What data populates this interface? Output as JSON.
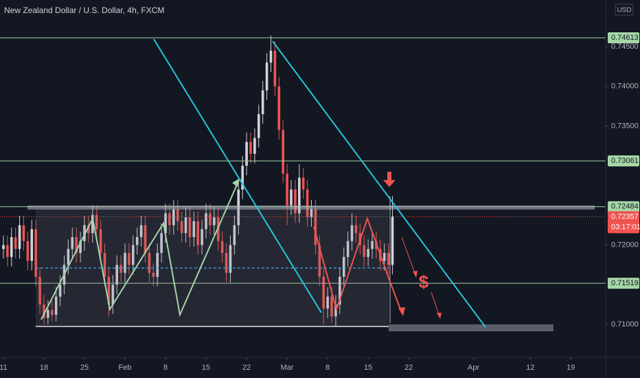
{
  "chart_data": {
    "type": "candlestick",
    "title": "New Zealand Dollar / U.S. Dollar, 4h, FXCM",
    "currency": "USD",
    "annotation": "$",
    "x": [
      0,
      0.5,
      1,
      1.5,
      2,
      2.5,
      3,
      3.5,
      4,
      4.5,
      5,
      5.5,
      6,
      6.5,
      7,
      7.5,
      8,
      8.5,
      9,
      9.5,
      10,
      10.5,
      11,
      11.5,
      12,
      12.5,
      13,
      13.5,
      14,
      14.5,
      15,
      15.5,
      16,
      16.5,
      17,
      17.5,
      18,
      18.5,
      19,
      19.5,
      20,
      20.5,
      21,
      21.5,
      22,
      22.5,
      23,
      23.5,
      24,
      24.5,
      25,
      25.5,
      26,
      26.5,
      27,
      27.5,
      28,
      28.5,
      29,
      29.5,
      30,
      30.5,
      31,
      31.5,
      32,
      32.5,
      33,
      33.5,
      34,
      34.5,
      35,
      35.5,
      36,
      36.5,
      37,
      37.5,
      38,
      38.5,
      39,
      39.5,
      40,
      40.5,
      41,
      41.5,
      42,
      42.5,
      43,
      43.5,
      44,
      44.5,
      45,
      45.5,
      46,
      46.5,
      47,
      47.5,
      48
    ],
    "open": [
      0.7195,
      0.72,
      0.7185,
      0.721,
      0.7195,
      0.7225,
      0.7205,
      0.718,
      0.722,
      0.716,
      0.7125,
      0.7108,
      0.7118,
      0.7112,
      0.7135,
      0.715,
      0.7175,
      0.7195,
      0.721,
      0.719,
      0.7205,
      0.7225,
      0.7215,
      0.7238,
      0.722,
      0.719,
      0.716,
      0.7125,
      0.715,
      0.7175,
      0.7165,
      0.719,
      0.7175,
      0.72,
      0.721,
      0.7225,
      0.719,
      0.7165,
      0.716,
      0.719,
      0.7215,
      0.724,
      0.7225,
      0.7245,
      0.723,
      0.7215,
      0.7235,
      0.721,
      0.723,
      0.72,
      0.722,
      0.724,
      0.7225,
      0.7235,
      0.7205,
      0.719,
      0.7165,
      0.72,
      0.7225,
      0.727,
      0.73,
      0.733,
      0.7315,
      0.7335,
      0.7365,
      0.7395,
      0.743,
      0.7445,
      0.74,
      0.7345,
      0.729,
      0.725,
      0.727,
      0.724,
      0.7285,
      0.727,
      0.7235,
      0.7245,
      0.72,
      0.716,
      0.712,
      0.7135,
      0.711,
      0.7125,
      0.716,
      0.7185,
      0.7205,
      0.7225,
      0.7215,
      0.72,
      0.7185,
      0.7195,
      0.7205,
      0.7195,
      0.718,
      0.719,
      0.7175
    ],
    "high": [
      0.7212,
      0.7212,
      0.7222,
      0.7222,
      0.7237,
      0.7237,
      0.7217,
      0.7232,
      0.7232,
      0.7172,
      0.7137,
      0.713,
      0.713,
      0.7147,
      0.7162,
      0.7187,
      0.7207,
      0.7222,
      0.7222,
      0.7217,
      0.7237,
      0.7237,
      0.725,
      0.725,
      0.7232,
      0.7202,
      0.7172,
      0.7162,
      0.7187,
      0.7187,
      0.7202,
      0.7202,
      0.7212,
      0.7222,
      0.7237,
      0.7237,
      0.7202,
      0.7177,
      0.7202,
      0.7227,
      0.7252,
      0.7252,
      0.7257,
      0.7257,
      0.7242,
      0.7247,
      0.7247,
      0.7242,
      0.7242,
      0.7232,
      0.7252,
      0.7252,
      0.7247,
      0.7247,
      0.7217,
      0.7202,
      0.7212,
      0.7237,
      0.7282,
      0.7312,
      0.7342,
      0.7342,
      0.7347,
      0.7377,
      0.7407,
      0.7442,
      0.7464,
      0.7457,
      0.7412,
      0.7357,
      0.7302,
      0.7282,
      0.7282,
      0.7302,
      0.7297,
      0.7282,
      0.7257,
      0.7257,
      0.7212,
      0.7172,
      0.7147,
      0.7147,
      0.7137,
      0.7172,
      0.7197,
      0.7217,
      0.724,
      0.7237,
      0.7227,
      0.7212,
      0.7207,
      0.7217,
      0.7217,
      0.7207,
      0.7202,
      0.7202,
      0.7262
    ],
    "low": [
      0.7183,
      0.7173,
      0.7173,
      0.7183,
      0.7183,
      0.7193,
      0.7168,
      0.7168,
      0.7148,
      0.7113,
      0.71,
      0.71,
      0.7104,
      0.7104,
      0.7123,
      0.7138,
      0.7163,
      0.7183,
      0.7178,
      0.7178,
      0.7193,
      0.7203,
      0.7203,
      0.7208,
      0.7178,
      0.7148,
      0.711,
      0.7113,
      0.7138,
      0.7153,
      0.7153,
      0.7163,
      0.7163,
      0.7188,
      0.7198,
      0.7178,
      0.7153,
      0.7148,
      0.7148,
      0.7178,
      0.7203,
      0.7213,
      0.7213,
      0.7218,
      0.7203,
      0.7203,
      0.7198,
      0.7198,
      0.7188,
      0.7188,
      0.7208,
      0.7213,
      0.7213,
      0.7193,
      0.7178,
      0.7153,
      0.7153,
      0.7188,
      0.7213,
      0.7258,
      0.7288,
      0.7303,
      0.7303,
      0.7323,
      0.7353,
      0.7383,
      0.7418,
      0.7388,
      0.7333,
      0.7278,
      0.7225,
      0.7238,
      0.7228,
      0.7228,
      0.7258,
      0.7223,
      0.7223,
      0.7188,
      0.7148,
      0.71,
      0.7108,
      0.7102,
      0.7098,
      0.7113,
      0.7148,
      0.7173,
      0.7193,
      0.7203,
      0.7188,
      0.7173,
      0.7173,
      0.7183,
      0.7183,
      0.7168,
      0.7168,
      0.7163,
      0.7163
    ],
    "close": [
      0.72,
      0.7185,
      0.721,
      0.7195,
      0.7225,
      0.7205,
      0.718,
      0.722,
      0.716,
      0.7125,
      0.7108,
      0.7118,
      0.7112,
      0.7135,
      0.715,
      0.7175,
      0.7195,
      0.721,
      0.719,
      0.7205,
      0.7225,
      0.7215,
      0.7238,
      0.722,
      0.719,
      0.716,
      0.7125,
      0.715,
      0.7175,
      0.7165,
      0.719,
      0.7175,
      0.72,
      0.721,
      0.7225,
      0.719,
      0.7165,
      0.716,
      0.719,
      0.7215,
      0.724,
      0.7225,
      0.7245,
      0.723,
      0.7215,
      0.7235,
      0.721,
      0.723,
      0.72,
      0.722,
      0.724,
      0.7225,
      0.7235,
      0.7205,
      0.719,
      0.7165,
      0.72,
      0.7225,
      0.727,
      0.73,
      0.733,
      0.7315,
      0.7335,
      0.7365,
      0.7395,
      0.743,
      0.7445,
      0.74,
      0.7345,
      0.729,
      0.725,
      0.727,
      0.724,
      0.7285,
      0.727,
      0.7235,
      0.7245,
      0.72,
      0.716,
      0.712,
      0.7135,
      0.711,
      0.7125,
      0.716,
      0.7185,
      0.7205,
      0.7225,
      0.7215,
      0.72,
      0.7185,
      0.7195,
      0.7205,
      0.7195,
      0.718,
      0.719,
      0.7175,
      0.7236
    ],
    "up_color": "#d1d4dc",
    "down_color": "#ef5350",
    "levels": [
      0.74613,
      0.73061,
      0.72484,
      0.71519
    ],
    "level_color": "#a5d6a7",
    "last_price": 0.72357,
    "countdown": "03:17:01",
    "xlim": [
      -0.42,
      74.3
    ],
    "ylim": [
      0.70584,
      0.75089
    ],
    "xticks": [
      {
        "value": 0,
        "label": "11"
      },
      {
        "value": 5,
        "label": "18"
      },
      {
        "value": 10,
        "label": "25"
      },
      {
        "value": 15,
        "label": "Feb"
      },
      {
        "value": 20,
        "label": "8"
      },
      {
        "value": 25,
        "label": "15"
      },
      {
        "value": 30,
        "label": "22"
      },
      {
        "value": 35,
        "label": "Mar"
      },
      {
        "value": 40,
        "label": "8"
      },
      {
        "value": 45,
        "label": "15"
      },
      {
        "value": 50,
        "label": "22"
      },
      {
        "value": 58,
        "label": "Apr"
      },
      {
        "value": 65,
        "label": "12"
      },
      {
        "value": 70,
        "label": "19"
      }
    ],
    "yticks": [
      {
        "value": 0.71,
        "label": "0.71000"
      },
      {
        "value": 0.72,
        "label": "0.72000"
      },
      {
        "value": 0.735,
        "label": "0.73500"
      },
      {
        "value": 0.74,
        "label": "0.74000"
      },
      {
        "value": 0.745,
        "label": "0.74500"
      }
    ]
  }
}
